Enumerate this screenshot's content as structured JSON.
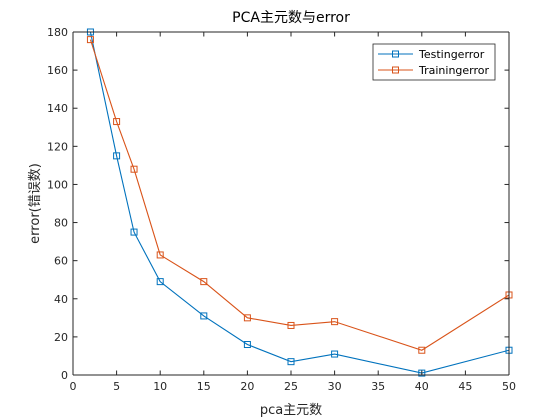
{
  "chart_data": {
    "type": "line",
    "title": "PCA主元数与error",
    "xlabel": "pca主元数",
    "ylabel": "error(错误数)",
    "xlim": [
      0,
      50
    ],
    "ylim": [
      0,
      180
    ],
    "xticks": [
      0,
      5,
      10,
      15,
      20,
      25,
      30,
      35,
      40,
      45,
      50
    ],
    "yticks": [
      0,
      20,
      40,
      60,
      80,
      100,
      120,
      140,
      160,
      180
    ],
    "grid": false,
    "legend_position": "top-right",
    "series": [
      {
        "name": "Testingerror",
        "color": "#0072BD",
        "marker": "square",
        "x": [
          2,
          5,
          7,
          10,
          15,
          20,
          25,
          30,
          40,
          50
        ],
        "y": [
          180,
          115,
          75,
          49,
          31,
          16,
          7,
          11,
          1,
          13
        ]
      },
      {
        "name": "Trainingerror",
        "color": "#D95319",
        "marker": "square",
        "x": [
          2,
          5,
          7,
          10,
          15,
          20,
          25,
          30,
          40,
          50
        ],
        "y": [
          176,
          133,
          108,
          63,
          49,
          30,
          26,
          28,
          13,
          42
        ]
      }
    ]
  }
}
